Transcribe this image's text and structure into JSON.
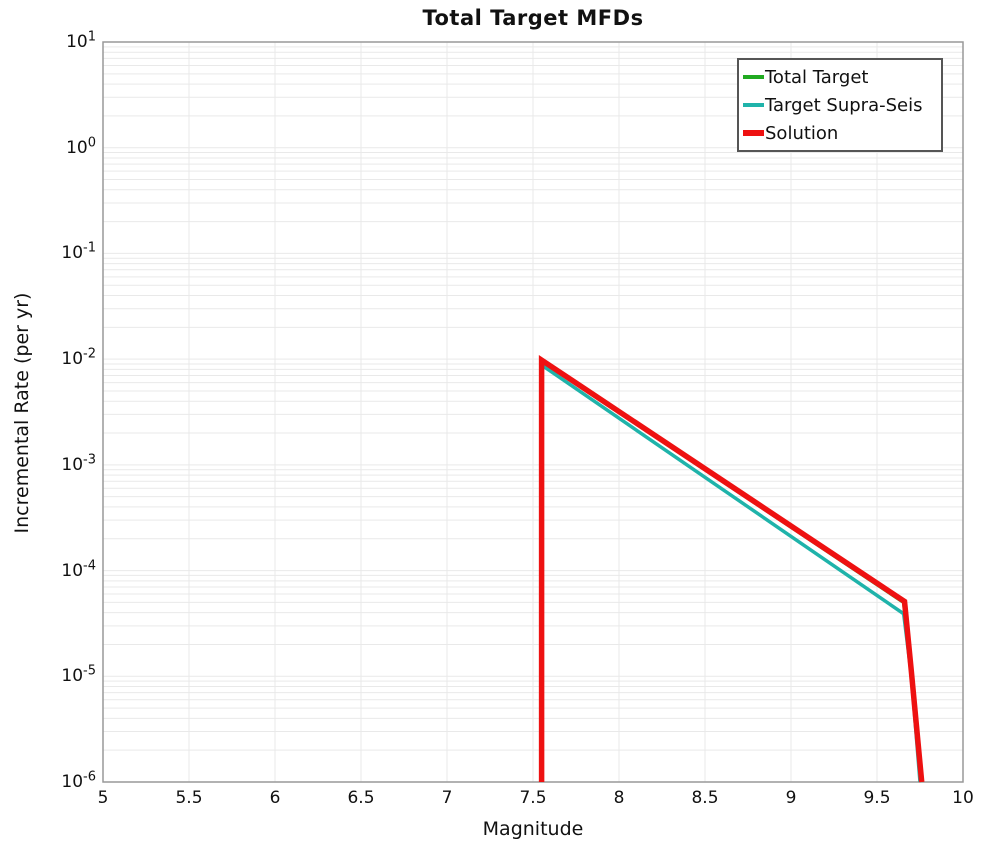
{
  "title": "Total Target MFDs",
  "xaxis": {
    "label": "Magnitude",
    "ticks": [
      "5",
      "5.5",
      "6",
      "6.5",
      "7",
      "7.5",
      "8",
      "8.5",
      "9",
      "9.5",
      "10"
    ]
  },
  "yaxis": {
    "label": "Incremental Rate (per yr)",
    "base": "10",
    "exponents": [
      "1",
      "0",
      "-1",
      "-2",
      "-3",
      "-4",
      "-5",
      "-6"
    ]
  },
  "legend": {
    "items": [
      {
        "label": "Total Target",
        "color": "#21aa21",
        "thickness": 4
      },
      {
        "label": "Target Supra-Seis",
        "color": "#1fb3aa",
        "thickness": 4
      },
      {
        "label": "Solution",
        "color": "#ee1111",
        "thickness": 6
      }
    ]
  },
  "colors": {
    "grid": "#e9e9e9",
    "frame": "#999999",
    "background": "#ffffff"
  },
  "chart_data": {
    "type": "line",
    "title": "Total Target MFDs",
    "xlabel": "Magnitude",
    "ylabel": "Incremental Rate (per yr)",
    "xlim": [
      5,
      10
    ],
    "ylim": [
      1e-06,
      10
    ],
    "yscale": "log",
    "grid": true,
    "legend_position": "upper right",
    "series": [
      {
        "name": "Total Target",
        "color": "#21aa21",
        "width": 3.5,
        "points": [
          [
            7.55,
            1e-06
          ],
          [
            7.55,
            0.0098
          ],
          [
            9.655,
            5e-05
          ],
          [
            9.7,
            1.1e-05
          ],
          [
            9.76,
            1e-06
          ]
        ]
      },
      {
        "name": "Target Supra-Seis",
        "color": "#1fb3aa",
        "width": 3.5,
        "points": [
          [
            7.55,
            1e-06
          ],
          [
            7.55,
            0.0088
          ],
          [
            9.655,
            3.9e-05
          ],
          [
            9.7,
            1e-05
          ],
          [
            9.75,
            1e-06
          ]
        ]
      },
      {
        "name": "Solution",
        "color": "#ee1111",
        "width": 5.5,
        "points": [
          [
            7.55,
            1e-06
          ],
          [
            7.55,
            0.0098
          ],
          [
            9.66,
            5.1e-05
          ],
          [
            9.7,
            1.1e-05
          ],
          [
            9.76,
            1e-06
          ]
        ]
      }
    ]
  }
}
